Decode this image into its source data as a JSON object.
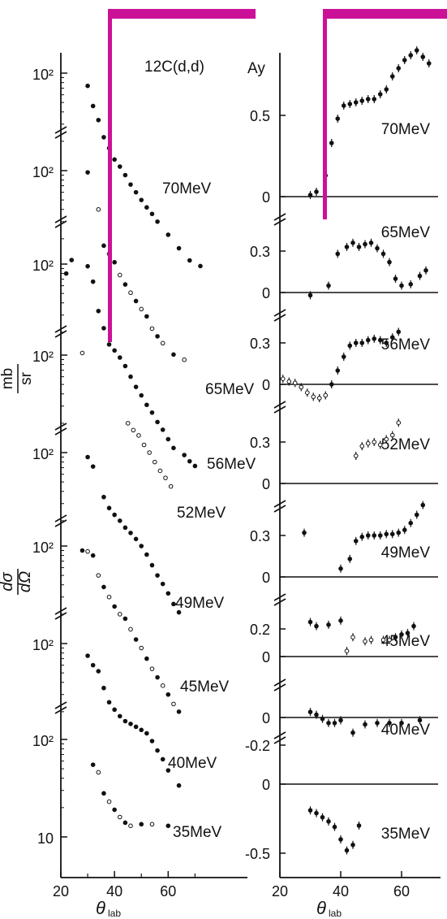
{
  "figure": {
    "reaction": "12C(d,d)",
    "marker_color": "#cc1199"
  },
  "chart_data": [
    {
      "type": "scatter",
      "name": "cross-section",
      "ylabel_numerator": "dσ",
      "ylabel_denominator": "dΩ",
      "ylabel_unit_num": "mb",
      "ylabel_unit_den": "sr",
      "xlabel": "θ",
      "xlabel_sub": "lab",
      "xlim": [
        20,
        72
      ],
      "xticks": [
        "20",
        "40",
        "60"
      ],
      "log_scale": true,
      "panels": [
        {
          "energy": "70MeV",
          "ytick": "10²",
          "points": [
            [
              30,
              74
            ],
            [
              32,
              46
            ],
            [
              34,
              33
            ],
            [
              36,
              22
            ],
            [
              38,
              17
            ],
            [
              40,
              13
            ],
            [
              42,
              11
            ],
            [
              44,
              9
            ],
            [
              46,
              7.2
            ],
            [
              48,
              6
            ],
            [
              50,
              5
            ],
            [
              52,
              4.2
            ],
            [
              54,
              3.6
            ],
            [
              56,
              3
            ],
            [
              60,
              2.2
            ],
            [
              64,
              1.6
            ],
            [
              68,
              1.2
            ],
            [
              72,
              1.05
            ]
          ]
        },
        {
          "energy": "65MeV",
          "ytick": "10²",
          "points": [
            [
              30,
              96
            ],
            [
              34,
              40
            ],
            [
              36,
              17
            ],
            [
              38,
              14
            ],
            [
              40,
              11.5
            ],
            [
              42,
              8.5
            ],
            [
              44,
              6.8
            ],
            [
              46,
              5.6
            ],
            [
              48,
              4.6
            ],
            [
              50,
              3.8
            ],
            [
              52,
              3.2
            ],
            [
              54,
              2.4
            ],
            [
              56,
              2.0
            ],
            [
              58,
              1.7
            ],
            [
              62,
              1.3
            ],
            [
              66,
              1.15
            ]
          ]
        },
        {
          "energy": "56MeV",
          "ytick": "10²",
          "points": [
            [
              22,
              80
            ],
            [
              24,
              110
            ],
            [
              30,
              95
            ],
            [
              32,
              66
            ],
            [
              34,
              33
            ],
            [
              36,
              22
            ],
            [
              38,
              15
            ],
            [
              40,
              13
            ],
            [
              42,
              11
            ],
            [
              44,
              9
            ],
            [
              46,
              7
            ],
            [
              48,
              5.5
            ],
            [
              50,
              4.5
            ],
            [
              52,
              3.6
            ],
            [
              54,
              3
            ],
            [
              56,
              2.4
            ],
            [
              58,
              2
            ],
            [
              60,
              1.6
            ],
            [
              62,
              1.3
            ],
            [
              66,
              1.1
            ],
            [
              68,
              0.95
            ],
            [
              70,
              0.85
            ]
          ]
        },
        {
          "energy": "52MeV",
          "ytick": "10²",
          "points": [
            [
              28,
              105
            ],
            [
              45,
              20
            ],
            [
              47,
              17
            ],
            [
              49,
              15
            ],
            [
              51,
              12
            ],
            [
              53,
              10
            ],
            [
              55,
              8
            ],
            [
              57,
              6.5
            ],
            [
              59,
              5.5
            ],
            [
              61,
              4.5
            ]
          ]
        },
        {
          "energy": "49MeV",
          "ytick": "10²",
          "points": [
            [
              30,
              90
            ],
            [
              32,
              72
            ],
            [
              36,
              35
            ],
            [
              38,
              27
            ],
            [
              40,
              23
            ],
            [
              42,
              20
            ],
            [
              44,
              17
            ],
            [
              46,
              15
            ],
            [
              48,
              13
            ],
            [
              50,
              11
            ],
            [
              52,
              9
            ],
            [
              54,
              7
            ],
            [
              56,
              5.5
            ],
            [
              58,
              4.5
            ],
            [
              60,
              3.6
            ],
            [
              62,
              2.8
            ],
            [
              64,
              2.3
            ]
          ]
        },
        {
          "energy": "45MeV",
          "ytick": "10²",
          "points": [
            [
              28,
              90
            ],
            [
              30,
              88
            ],
            [
              32,
              80
            ],
            [
              34,
              50
            ],
            [
              36,
              38
            ],
            [
              38,
              30
            ],
            [
              40,
              24
            ],
            [
              42,
              20
            ],
            [
              44,
              18
            ],
            [
              46,
              14
            ],
            [
              48,
              11
            ],
            [
              50,
              9
            ],
            [
              52,
              7
            ],
            [
              54,
              5.5
            ],
            [
              56,
              4.5
            ],
            [
              58,
              3.7
            ],
            [
              60,
              3
            ],
            [
              62,
              2.4
            ],
            [
              64,
              2
            ]
          ]
        },
        {
          "energy": "40MeV",
          "ytick": "10²",
          "points": [
            [
              30,
              75
            ],
            [
              32,
              60
            ],
            [
              34,
              52
            ],
            [
              36,
              35
            ],
            [
              38,
              25
            ],
            [
              40,
              21
            ],
            [
              42,
              18
            ],
            [
              44,
              16
            ],
            [
              46,
              15
            ],
            [
              48,
              14
            ],
            [
              50,
              13
            ],
            [
              52,
              12
            ],
            [
              54,
              10
            ],
            [
              56,
              8
            ],
            [
              58,
              6.5
            ],
            [
              60,
              5
            ],
            [
              64,
              3.5
            ]
          ]
        },
        {
          "energy": "35MeV",
          "ytick": "10²",
          "ytick_low": "10",
          "points": [
            [
              32,
              55
            ],
            [
              34,
              46
            ],
            [
              36,
              28
            ],
            [
              38,
              23
            ],
            [
              40,
              19
            ],
            [
              42,
              16
            ],
            [
              44,
              14
            ],
            [
              46,
              13
            ],
            [
              50,
              13.5
            ],
            [
              54,
              13.5
            ],
            [
              60,
              13
            ]
          ]
        }
      ]
    },
    {
      "type": "scatter",
      "name": "analyzing-power",
      "ylabel": "Ay",
      "xlabel": "θ",
      "xlabel_sub": "lab",
      "xlim": [
        20,
        72
      ],
      "xticks": [
        "20",
        "40",
        "60"
      ],
      "panels": [
        {
          "energy": "70MeV",
          "yticks": [
            "0.5",
            "0"
          ],
          "points": [
            [
              30,
              0.01
            ],
            [
              32,
              0.03
            ],
            [
              35,
              0.13
            ],
            [
              37,
              0.33
            ],
            [
              39,
              0.48
            ],
            [
              41,
              0.56
            ],
            [
              43,
              0.57
            ],
            [
              45,
              0.58
            ],
            [
              47,
              0.59
            ],
            [
              49,
              0.6
            ],
            [
              51,
              0.6
            ],
            [
              53,
              0.63
            ],
            [
              55,
              0.66
            ],
            [
              57,
              0.74
            ],
            [
              59,
              0.79
            ],
            [
              61,
              0.84
            ],
            [
              63,
              0.87
            ],
            [
              65,
              0.9
            ],
            [
              67,
              0.86
            ],
            [
              69,
              0.82
            ]
          ]
        },
        {
          "energy": "65MeV",
          "yticks": [
            "0.3",
            "0"
          ],
          "points": [
            [
              30,
              -0.02
            ],
            [
              36,
              0.05
            ],
            [
              39,
              0.28
            ],
            [
              42,
              0.33
            ],
            [
              44,
              0.36
            ],
            [
              46,
              0.33
            ],
            [
              48,
              0.35
            ],
            [
              50,
              0.36
            ],
            [
              52,
              0.32
            ],
            [
              54,
              0.28
            ],
            [
              56,
              0.22
            ],
            [
              58,
              0.1
            ],
            [
              60,
              0.05
            ],
            [
              63,
              0.06
            ],
            [
              66,
              0.12
            ],
            [
              68,
              0.16
            ]
          ]
        },
        {
          "energy": "56MeV",
          "yticks": [
            "0.3",
            "0"
          ],
          "points": [
            [
              21,
              0.04
            ],
            [
              23,
              0.02
            ],
            [
              25,
              0.01
            ],
            [
              27,
              -0.02
            ],
            [
              29,
              -0.06
            ],
            [
              31,
              -0.09
            ],
            [
              33,
              -0.1
            ],
            [
              35,
              -0.08
            ],
            [
              37,
              0.0
            ],
            [
              39,
              0.1
            ],
            [
              41,
              0.2
            ],
            [
              43,
              0.28
            ],
            [
              45,
              0.3
            ],
            [
              47,
              0.3
            ],
            [
              49,
              0.32
            ],
            [
              51,
              0.33
            ],
            [
              53,
              0.32
            ],
            [
              55,
              0.3
            ],
            [
              57,
              0.34
            ],
            [
              59,
              0.38
            ]
          ]
        },
        {
          "energy": "52MeV",
          "yticks": [
            "0.3",
            "0"
          ],
          "points": [
            [
              45,
              0.2
            ],
            [
              47,
              0.27
            ],
            [
              49,
              0.29
            ],
            [
              51,
              0.3
            ],
            [
              53,
              0.28
            ],
            [
              55,
              0.32
            ],
            [
              57,
              0.35
            ],
            [
              59,
              0.44
            ]
          ]
        },
        {
          "energy": "49MeV",
          "yticks": [
            "0.3",
            "0"
          ],
          "points": [
            [
              28,
              0.32
            ],
            [
              40,
              0.06
            ],
            [
              43,
              0.13
            ],
            [
              45,
              0.26
            ],
            [
              47,
              0.29
            ],
            [
              49,
              0.3
            ],
            [
              51,
              0.3
            ],
            [
              53,
              0.3
            ],
            [
              55,
              0.31
            ],
            [
              57,
              0.31
            ],
            [
              59,
              0.32
            ],
            [
              61,
              0.34
            ],
            [
              63,
              0.39
            ],
            [
              65,
              0.45
            ],
            [
              67,
              0.52
            ]
          ]
        },
        {
          "energy": "45MeV",
          "yticks": [
            "0.2",
            "0"
          ],
          "points": [
            [
              30,
              0.25
            ],
            [
              32,
              0.22
            ],
            [
              36,
              0.23
            ],
            [
              40,
              0.26
            ],
            [
              42,
              0.04
            ],
            [
              44,
              0.14
            ],
            [
              48,
              0.11
            ],
            [
              50,
              0.12
            ],
            [
              54,
              0.12
            ],
            [
              56,
              0.12
            ],
            [
              58,
              0.14
            ],
            [
              60,
              0.16
            ],
            [
              62,
              0.17
            ],
            [
              64,
              0.22
            ]
          ]
        },
        {
          "energy": "40MeV",
          "yticks": [
            "0",
            "-0.2"
          ],
          "points": [
            [
              30,
              0.04
            ],
            [
              32,
              0.02
            ],
            [
              34,
              -0.01
            ],
            [
              36,
              -0.04
            ],
            [
              38,
              -0.04
            ],
            [
              40,
              -0.02
            ],
            [
              44,
              -0.11
            ],
            [
              48,
              -0.05
            ],
            [
              52,
              -0.04
            ],
            [
              56,
              -0.04
            ],
            [
              60,
              -0.04
            ],
            [
              66,
              -0.02
            ]
          ]
        },
        {
          "energy": "35MeV",
          "yticks": [
            "0",
            "-0.5"
          ],
          "points": [
            [
              30,
              -0.19
            ],
            [
              32,
              -0.21
            ],
            [
              34,
              -0.24
            ],
            [
              36,
              -0.27
            ],
            [
              38,
              -0.31
            ],
            [
              40,
              -0.4
            ],
            [
              42,
              -0.48
            ],
            [
              44,
              -0.44
            ],
            [
              46,
              -0.3
            ]
          ]
        }
      ]
    }
  ]
}
